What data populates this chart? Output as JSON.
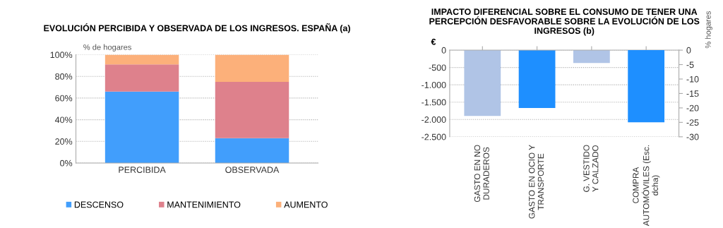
{
  "chart_data": [
    {
      "type": "bar",
      "title": "EVOLUCIÓN PERCIBIDA Y OBSERVADA DE LOS INGRESOS. ESPAÑA (a)",
      "ylabel": "% de hogares",
      "categories": [
        "PERCIBIDA",
        "OBSERVADA"
      ],
      "stacked": true,
      "series": [
        {
          "name": "DESCENSO",
          "color": "#419efc",
          "values": [
            66,
            23
          ]
        },
        {
          "name": "MANTENIMIENTO",
          "color": "#de818c",
          "values": [
            25,
            52
          ]
        },
        {
          "name": "AUMENTO",
          "color": "#fcb07a",
          "values": [
            9,
            25
          ]
        }
      ],
      "ylim": [
        0,
        100
      ],
      "yticks": [
        {
          "value": 0,
          "label": "0%"
        },
        {
          "value": 20,
          "label": "20%"
        },
        {
          "value": 40,
          "label": "40%"
        },
        {
          "value": 60,
          "label": "60%"
        },
        {
          "value": 80,
          "label": "80%"
        },
        {
          "value": 100,
          "label": "100%"
        }
      ],
      "grid": "y",
      "legend": "bottom"
    },
    {
      "type": "bar",
      "title": "IMPACTO DIFERENCIAL SOBRE EL CONSUMO DE TENER UNA PERCEPCIÓN DESFAVORABLE SOBRE LA EVOLUCIÓN DE LOS INGRESOS (b)",
      "ylabel": "€",
      "y2label": "% hogares",
      "categories": [
        "GASTO EN NO\nDURADEROS",
        "GASTO EN OCIO Y\nTRANSPORTE",
        "G. VESTIDO\nY CALZADO",
        "COMPRA\nAUTOMÓVILES (Esc.\ndcha)"
      ],
      "series": [
        {
          "colors": [
            "#b0c4e6",
            "#1e8fff",
            "#b0c4e6",
            null
          ],
          "values": [
            -1900,
            -1670,
            -370,
            null
          ]
        },
        {
          "axis": "y2",
          "colors": [
            null,
            null,
            null,
            "#1e8fff"
          ],
          "values": [
            null,
            null,
            null,
            -25
          ]
        }
      ],
      "ylim": [
        -2500,
        0
      ],
      "yticks": [
        {
          "value": -2500,
          "label": "-2.500"
        },
        {
          "value": -2000,
          "label": "-2.000"
        },
        {
          "value": -1500,
          "label": "-1.500"
        },
        {
          "value": -1000,
          "label": "-1.000"
        },
        {
          "value": -500,
          "label": "-500"
        },
        0
      ],
      "y2lim": [
        -30,
        0
      ],
      "y2ticks": [
        -30,
        -25,
        -20,
        -15,
        -10,
        -5,
        0
      ],
      "grid": "y",
      "legend": false
    }
  ]
}
